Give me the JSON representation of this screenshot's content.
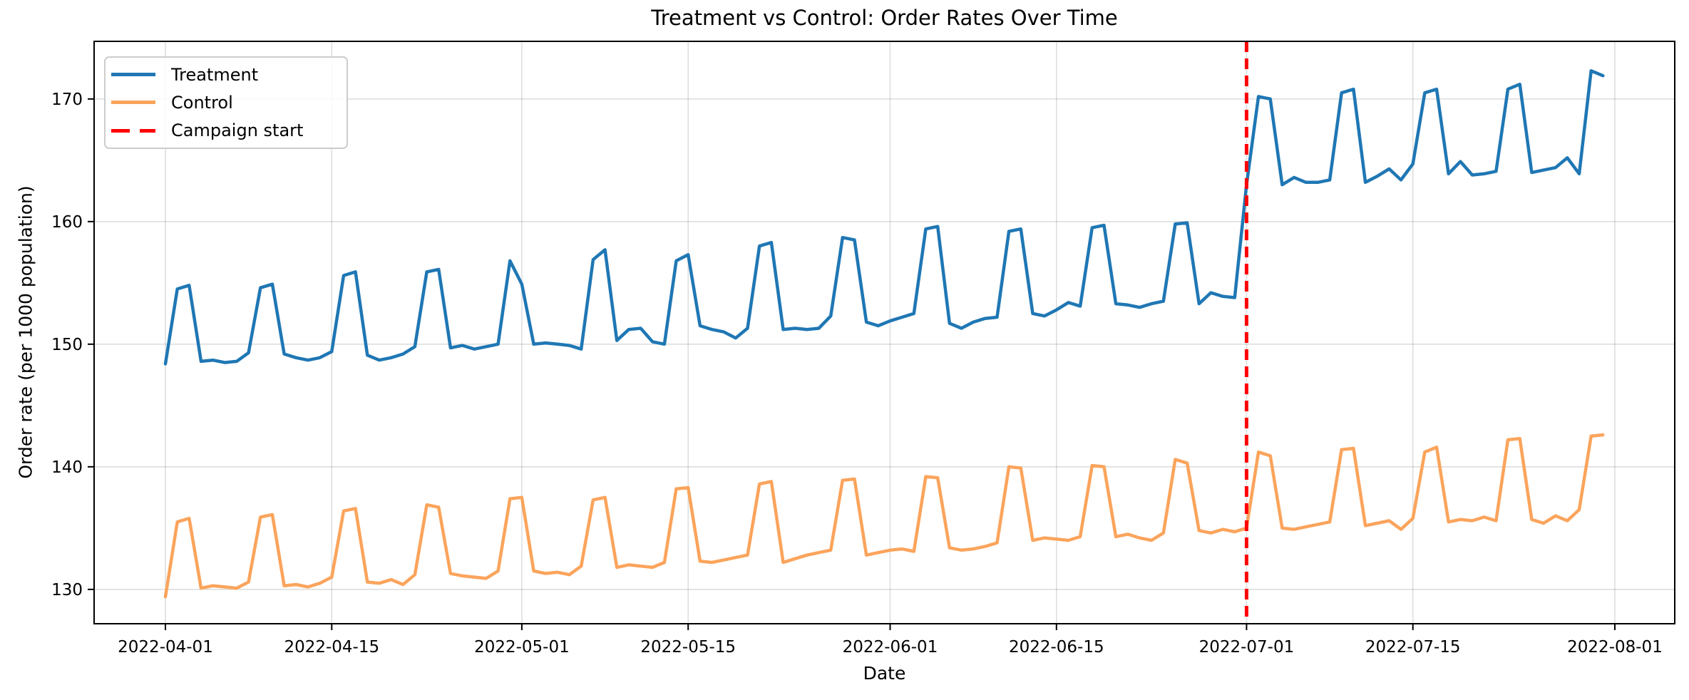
{
  "figure": {
    "title": "Treatment vs Control: Order Rates Over Time",
    "xlabel": "Date",
    "ylabel": "Order rate (per 1000 population)"
  },
  "legend": {
    "position": "upper left",
    "items": [
      {
        "label": "Treatment",
        "color": "#1f77b4",
        "dashed": false
      },
      {
        "label": "Control",
        "color": "#fba45c",
        "dashed": false
      },
      {
        "label": "Campaign start",
        "color": "#ff0000",
        "dashed": true
      }
    ]
  },
  "chart_data": {
    "type": "line",
    "title": "Treatment vs Control: Order Rates Over Time",
    "xlabel": "Date",
    "ylabel": "Order rate (per 1000 population)",
    "grid": true,
    "ylim": [
      127.2,
      174.7
    ],
    "y_ticks": [
      130,
      140,
      150,
      160,
      170
    ],
    "x_tick_labels": [
      "2022-04-01",
      "2022-04-15",
      "2022-05-01",
      "2022-05-15",
      "2022-06-01",
      "2022-06-15",
      "2022-07-01",
      "2022-07-15",
      "2022-08-01"
    ],
    "x_tick_days": [
      0,
      14,
      30,
      44,
      61,
      75,
      91,
      105,
      122
    ],
    "annotations": [
      {
        "type": "vline",
        "x": "2022-07-01",
        "label": "Campaign start",
        "color": "#ff0000",
        "style": "dashed"
      }
    ],
    "x": [
      "2022-04-01",
      "2022-04-02",
      "2022-04-03",
      "2022-04-04",
      "2022-04-05",
      "2022-04-06",
      "2022-04-07",
      "2022-04-08",
      "2022-04-09",
      "2022-04-10",
      "2022-04-11",
      "2022-04-12",
      "2022-04-13",
      "2022-04-14",
      "2022-04-15",
      "2022-04-16",
      "2022-04-17",
      "2022-04-18",
      "2022-04-19",
      "2022-04-20",
      "2022-04-21",
      "2022-04-22",
      "2022-04-23",
      "2022-04-24",
      "2022-04-25",
      "2022-04-26",
      "2022-04-27",
      "2022-04-28",
      "2022-04-29",
      "2022-04-30",
      "2022-05-01",
      "2022-05-02",
      "2022-05-03",
      "2022-05-04",
      "2022-05-05",
      "2022-05-06",
      "2022-05-07",
      "2022-05-08",
      "2022-05-09",
      "2022-05-10",
      "2022-05-11",
      "2022-05-12",
      "2022-05-13",
      "2022-05-14",
      "2022-05-15",
      "2022-05-16",
      "2022-05-17",
      "2022-05-18",
      "2022-05-19",
      "2022-05-20",
      "2022-05-21",
      "2022-05-22",
      "2022-05-23",
      "2022-05-24",
      "2022-05-25",
      "2022-05-26",
      "2022-05-27",
      "2022-05-28",
      "2022-05-29",
      "2022-05-30",
      "2022-05-31",
      "2022-06-01",
      "2022-06-02",
      "2022-06-03",
      "2022-06-04",
      "2022-06-05",
      "2022-06-06",
      "2022-06-07",
      "2022-06-08",
      "2022-06-09",
      "2022-06-10",
      "2022-06-11",
      "2022-06-12",
      "2022-06-13",
      "2022-06-14",
      "2022-06-15",
      "2022-06-16",
      "2022-06-17",
      "2022-06-18",
      "2022-06-19",
      "2022-06-20",
      "2022-06-21",
      "2022-06-22",
      "2022-06-23",
      "2022-06-24",
      "2022-06-25",
      "2022-06-26",
      "2022-06-27",
      "2022-06-28",
      "2022-06-29",
      "2022-06-30",
      "2022-07-01",
      "2022-07-02",
      "2022-07-03",
      "2022-07-04",
      "2022-07-05",
      "2022-07-06",
      "2022-07-07",
      "2022-07-08",
      "2022-07-09",
      "2022-07-10",
      "2022-07-11",
      "2022-07-12",
      "2022-07-13",
      "2022-07-14",
      "2022-07-15",
      "2022-07-16",
      "2022-07-17",
      "2022-07-18",
      "2022-07-19",
      "2022-07-20",
      "2022-07-21",
      "2022-07-22",
      "2022-07-23",
      "2022-07-24",
      "2022-07-25",
      "2022-07-26",
      "2022-07-27",
      "2022-07-28",
      "2022-07-29",
      "2022-07-30",
      "2022-07-31"
    ],
    "series": [
      {
        "name": "Treatment",
        "color": "#1f77b4",
        "values": [
          148.4,
          154.5,
          154.8,
          148.6,
          148.7,
          148.5,
          148.6,
          149.3,
          154.6,
          154.9,
          149.2,
          148.9,
          148.7,
          148.9,
          149.4,
          155.6,
          155.9,
          149.1,
          148.7,
          148.9,
          149.2,
          149.8,
          155.9,
          156.1,
          149.7,
          149.9,
          149.6,
          149.8,
          150.0,
          156.8,
          154.9,
          150.0,
          150.1,
          150.0,
          149.9,
          149.6,
          156.9,
          157.7,
          150.3,
          151.2,
          151.3,
          150.2,
          150.0,
          156.8,
          157.3,
          151.5,
          151.2,
          151.0,
          150.5,
          151.3,
          158.0,
          158.3,
          151.2,
          151.3,
          151.2,
          151.3,
          152.3,
          158.7,
          158.5,
          151.8,
          151.5,
          151.9,
          152.2,
          152.5,
          159.4,
          159.6,
          151.7,
          151.3,
          151.8,
          152.1,
          152.2,
          159.2,
          159.4,
          152.5,
          152.3,
          152.8,
          153.4,
          153.1,
          159.5,
          159.7,
          153.3,
          153.2,
          153.0,
          153.3,
          153.5,
          159.8,
          159.9,
          153.3,
          154.2,
          153.9,
          153.8,
          163.0,
          170.2,
          170.0,
          163.0,
          163.6,
          163.2,
          163.2,
          163.4,
          170.5,
          170.8,
          163.2,
          163.7,
          164.3,
          163.4,
          164.7,
          170.5,
          170.8,
          163.9,
          164.9,
          163.8,
          163.9,
          164.1,
          170.8,
          171.2,
          164.0,
          164.2,
          164.4,
          165.2,
          163.9,
          172.3,
          171.9
        ]
      },
      {
        "name": "Control",
        "color": "#fba45c",
        "values": [
          129.4,
          135.5,
          135.8,
          130.1,
          130.3,
          130.2,
          130.1,
          130.6,
          135.9,
          136.1,
          130.3,
          130.4,
          130.2,
          130.5,
          131.0,
          136.4,
          136.6,
          130.6,
          130.5,
          130.8,
          130.4,
          131.2,
          136.9,
          136.7,
          131.3,
          131.1,
          131.0,
          130.9,
          131.5,
          137.4,
          137.5,
          131.5,
          131.3,
          131.4,
          131.2,
          131.9,
          137.3,
          137.5,
          131.8,
          132.0,
          131.9,
          131.8,
          132.2,
          138.2,
          138.3,
          132.3,
          132.2,
          132.4,
          132.6,
          132.8,
          138.6,
          138.8,
          132.2,
          132.5,
          132.8,
          133.0,
          133.2,
          138.9,
          139.0,
          132.8,
          133.0,
          133.2,
          133.3,
          133.1,
          139.2,
          139.1,
          133.4,
          133.2,
          133.3,
          133.5,
          133.8,
          140.0,
          139.9,
          134.0,
          134.2,
          134.1,
          134.0,
          134.3,
          140.1,
          140.0,
          134.3,
          134.5,
          134.2,
          134.0,
          134.6,
          140.6,
          140.3,
          134.8,
          134.6,
          134.9,
          134.7,
          135.0,
          141.2,
          140.9,
          135.0,
          134.9,
          135.1,
          135.3,
          135.5,
          141.4,
          141.5,
          135.2,
          135.4,
          135.6,
          134.9,
          135.8,
          141.2,
          141.6,
          135.5,
          135.7,
          135.6,
          135.9,
          135.6,
          142.2,
          142.3,
          135.7,
          135.4,
          136.0,
          135.6,
          136.5,
          142.5,
          142.6
        ]
      }
    ]
  }
}
